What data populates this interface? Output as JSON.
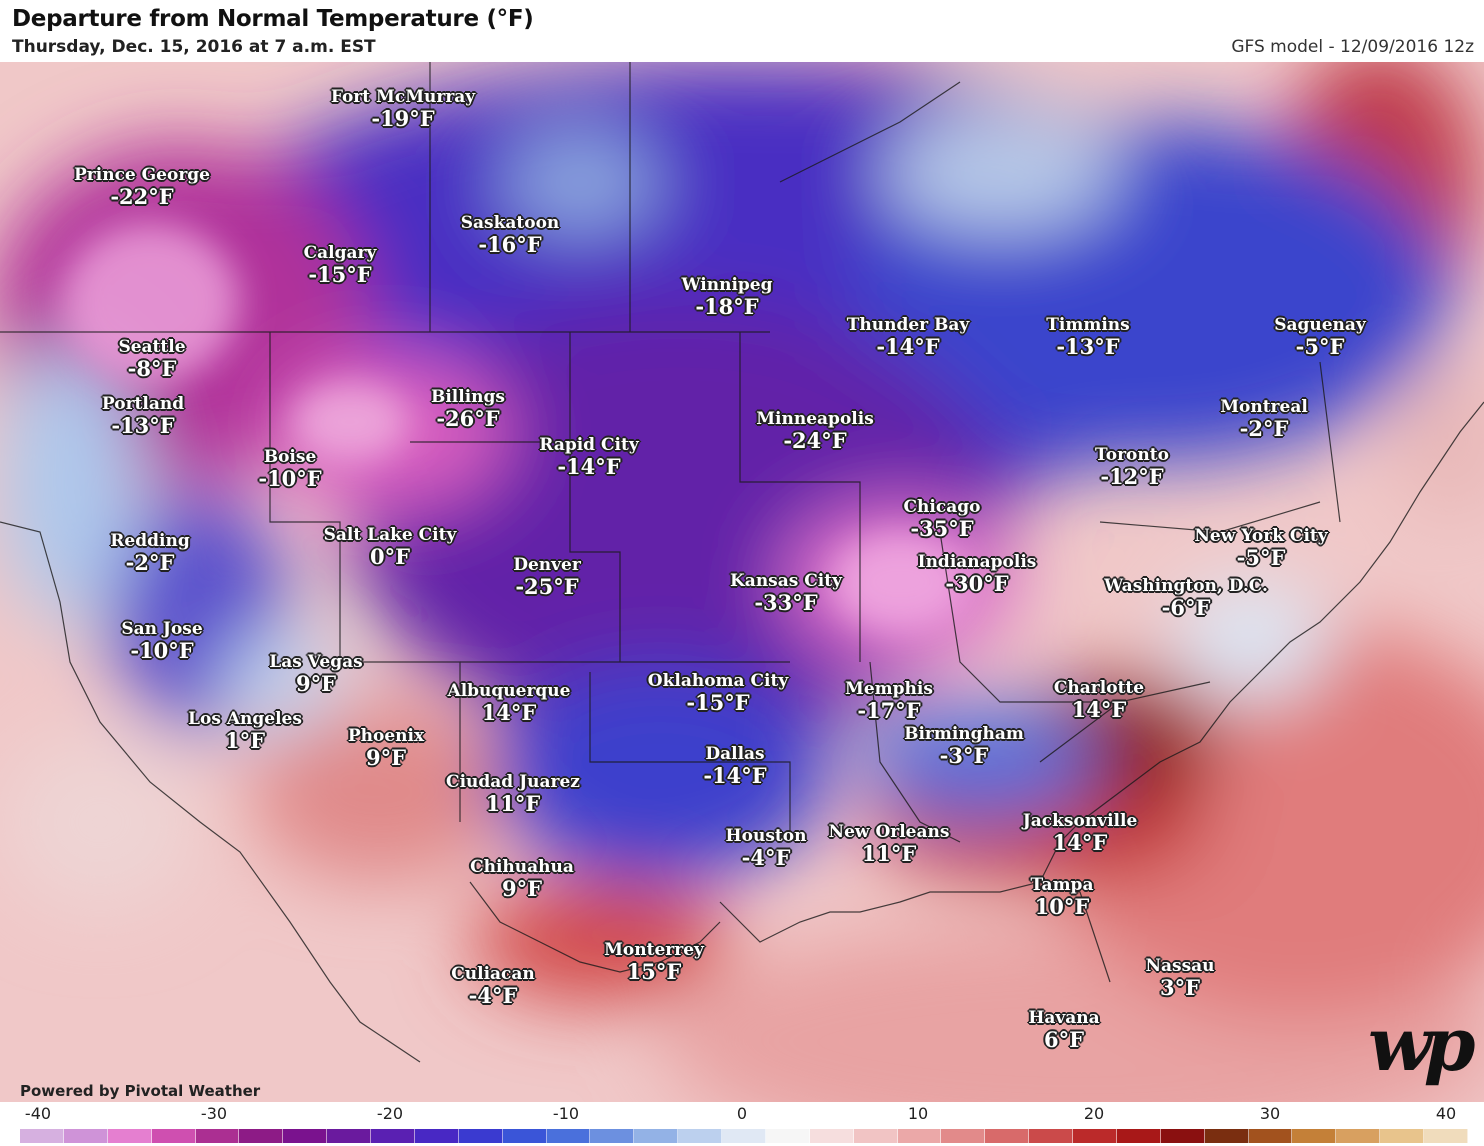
{
  "header": {
    "title": "Departure from Normal Temperature (°F)",
    "subtitle": "Thursday, Dec. 15, 2016 at 7 a.m. EST",
    "model": "GFS model - 12/09/2016 12z"
  },
  "cities": [
    {
      "name": "Fort McMurray",
      "temp": "-19°F"
    },
    {
      "name": "Prince George",
      "temp": "-22°F"
    },
    {
      "name": "Saskatoon",
      "temp": "-16°F"
    },
    {
      "name": "Calgary",
      "temp": "-15°F"
    },
    {
      "name": "Winnipeg",
      "temp": "-18°F"
    },
    {
      "name": "Thunder Bay",
      "temp": "-14°F"
    },
    {
      "name": "Timmins",
      "temp": "-13°F"
    },
    {
      "name": "Saguenay",
      "temp": "-5°F"
    },
    {
      "name": "Seattle",
      "temp": "-8°F"
    },
    {
      "name": "Portland",
      "temp": "-13°F"
    },
    {
      "name": "Billings",
      "temp": "-26°F"
    },
    {
      "name": "Rapid City",
      "temp": "-14°F"
    },
    {
      "name": "Minneapolis",
      "temp": "-24°F"
    },
    {
      "name": "Montreal",
      "temp": "-2°F"
    },
    {
      "name": "Boise",
      "temp": "-10°F"
    },
    {
      "name": "Toronto",
      "temp": "-12°F"
    },
    {
      "name": "Chicago",
      "temp": "-35°F"
    },
    {
      "name": "Redding",
      "temp": "-2°F"
    },
    {
      "name": "Salt Lake City",
      "temp": "0°F"
    },
    {
      "name": "Denver",
      "temp": "-25°F"
    },
    {
      "name": "New York City",
      "temp": "-5°F"
    },
    {
      "name": "Indianapolis",
      "temp": "-30°F"
    },
    {
      "name": "Kansas City",
      "temp": "-33°F"
    },
    {
      "name": "Washington, D.C.",
      "temp": "-6°F"
    },
    {
      "name": "San Jose",
      "temp": "-10°F"
    },
    {
      "name": "Las Vegas",
      "temp": "9°F"
    },
    {
      "name": "Oklahoma City",
      "temp": "-15°F"
    },
    {
      "name": "Charlotte",
      "temp": "14°F"
    },
    {
      "name": "Memphis",
      "temp": "-17°F"
    },
    {
      "name": "Albuquerque",
      "temp": "14°F"
    },
    {
      "name": "Los Angeles",
      "temp": "1°F"
    },
    {
      "name": "Birmingham",
      "temp": "-3°F"
    },
    {
      "name": "Phoenix",
      "temp": "9°F"
    },
    {
      "name": "Dallas",
      "temp": "-14°F"
    },
    {
      "name": "Ciudad Juarez",
      "temp": "11°F"
    },
    {
      "name": "Jacksonville",
      "temp": "14°F"
    },
    {
      "name": "Houston",
      "temp": "-4°F"
    },
    {
      "name": "New Orleans",
      "temp": "11°F"
    },
    {
      "name": "Chihuahua",
      "temp": "9°F"
    },
    {
      "name": "Tampa",
      "temp": "10°F"
    },
    {
      "name": "Monterrey",
      "temp": "15°F"
    },
    {
      "name": "Nassau",
      "temp": "3°F"
    },
    {
      "name": "Culiacan",
      "temp": "-4°F"
    },
    {
      "name": "Havana",
      "temp": "6°F"
    }
  ],
  "footer": {
    "powered_by": "Powered by Pivotal Weather",
    "logo": "wp"
  },
  "scale": {
    "ticks": [
      "-40",
      "-30",
      "-20",
      "-10",
      "0",
      "10",
      "20",
      "30",
      "40"
    ],
    "colors": [
      "#d6b0e0",
      "#cf93d8",
      "#e57fd0",
      "#cf4fb0",
      "#ab2f92",
      "#8d1b86",
      "#7a128e",
      "#6a1a9e",
      "#5a20b2",
      "#4828c4",
      "#3a3ad0",
      "#3a55d8",
      "#4a70dc",
      "#6c90e0",
      "#93b2e6",
      "#bcd0ee",
      "#e0e8f4",
      "#f6f6f6",
      "#f6dede",
      "#f1c4c4",
      "#eba8a8",
      "#e28a8a",
      "#d86a6a",
      "#cb4a4a",
      "#bb2a2a",
      "#a81818",
      "#8a1010",
      "#7a2e10",
      "#a2521e",
      "#c48038",
      "#d8a060",
      "#e8c48c",
      "#f0dcbc"
    ]
  }
}
